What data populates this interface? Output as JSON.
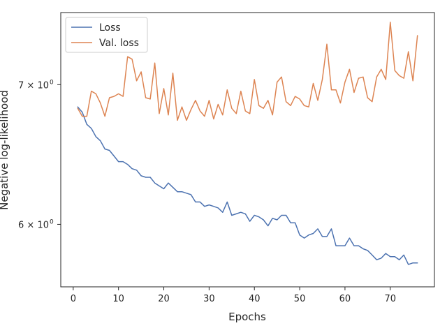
{
  "chart_data": {
    "type": "line",
    "title": "",
    "xlabel": "Epochs",
    "ylabel": "Negative log-likelihood",
    "xlim": [
      -2.75,
      79.75
    ],
    "ylim": [
      5.6,
      7.58
    ],
    "yscale": "log",
    "grid": false,
    "legend_position": "top-left",
    "x_ticks": [
      0,
      10,
      20,
      30,
      40,
      50,
      60,
      70
    ],
    "x_tick_labels": [
      "0",
      "10",
      "20",
      "30",
      "40",
      "50",
      "60",
      "70"
    ],
    "y_ticks": [
      6,
      7
    ],
    "y_tick_labels": [
      "6 × 10",
      "7 × 10"
    ],
    "y_tick_exponent": "0",
    "x": [
      1,
      2,
      3,
      4,
      5,
      6,
      7,
      8,
      9,
      10,
      11,
      12,
      13,
      14,
      15,
      16,
      17,
      18,
      19,
      20,
      21,
      22,
      23,
      24,
      25,
      26,
      27,
      28,
      29,
      30,
      31,
      32,
      33,
      34,
      35,
      36,
      37,
      38,
      39,
      40,
      41,
      42,
      43,
      44,
      45,
      46,
      47,
      48,
      49,
      50,
      51,
      52,
      53,
      54,
      55,
      56,
      57,
      58,
      59,
      60,
      61,
      62,
      63,
      64,
      65,
      66,
      67,
      68,
      69,
      70,
      71,
      72,
      73,
      74,
      75,
      76
    ],
    "series": [
      {
        "name": "Loss",
        "color": "#4c72b0",
        "values": [
          6.83,
          6.79,
          6.7,
          6.67,
          6.61,
          6.58,
          6.52,
          6.51,
          6.47,
          6.43,
          6.43,
          6.41,
          6.38,
          6.37,
          6.33,
          6.32,
          6.32,
          6.28,
          6.26,
          6.24,
          6.28,
          6.25,
          6.22,
          6.22,
          6.21,
          6.2,
          6.15,
          6.15,
          6.12,
          6.13,
          6.12,
          6.11,
          6.08,
          6.15,
          6.06,
          6.07,
          6.08,
          6.07,
          6.02,
          6.06,
          6.05,
          6.03,
          5.99,
          6.04,
          6.03,
          6.06,
          6.06,
          6.01,
          6.01,
          5.93,
          5.91,
          5.93,
          5.94,
          5.97,
          5.92,
          5.92,
          5.97,
          5.86,
          5.86,
          5.86,
          5.91,
          5.86,
          5.86,
          5.84,
          5.83,
          5.8,
          5.77,
          5.78,
          5.81,
          5.79,
          5.79,
          5.77,
          5.8,
          5.74,
          5.75,
          5.75
        ]
      },
      {
        "name": "Val. loss",
        "color": "#dd8452",
        "values": [
          6.82,
          6.76,
          6.76,
          6.95,
          6.93,
          6.86,
          6.76,
          6.9,
          6.91,
          6.93,
          6.91,
          7.22,
          7.2,
          7.03,
          7.1,
          6.9,
          6.89,
          7.17,
          6.78,
          6.97,
          6.77,
          7.09,
          6.73,
          6.83,
          6.73,
          6.81,
          6.88,
          6.8,
          6.76,
          6.88,
          6.74,
          6.85,
          6.77,
          6.96,
          6.82,
          6.78,
          6.95,
          6.8,
          6.78,
          7.04,
          6.84,
          6.82,
          6.88,
          6.77,
          7.02,
          7.06,
          6.87,
          6.84,
          6.91,
          6.89,
          6.84,
          6.83,
          7.01,
          6.88,
          7.04,
          7.32,
          6.96,
          6.96,
          6.86,
          7.02,
          7.12,
          6.94,
          7.05,
          7.06,
          6.9,
          6.87,
          7.06,
          7.12,
          7.04,
          7.5,
          7.11,
          7.07,
          7.05,
          7.26,
          7.03,
          7.39
        ]
      }
    ]
  }
}
